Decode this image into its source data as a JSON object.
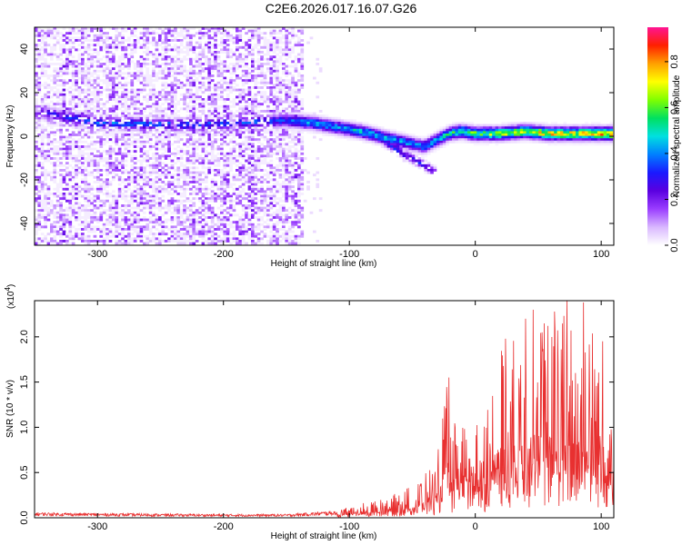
{
  "title": "C2E6.2026.017.16.07.G26",
  "chart_data": [
    {
      "type": "heatmap",
      "xlabel": "Height of straight line (km)",
      "ylabel": "Frequency (Hz)",
      "xlim": [
        -350,
        110
      ],
      "ylim": [
        -50,
        50
      ],
      "xticks": [
        -300,
        -200,
        -100,
        0,
        100
      ],
      "yticks": [
        -40,
        -20,
        0,
        20,
        40
      ],
      "xtick_labels": [
        "-300",
        "-200",
        "-100",
        "0",
        "100"
      ],
      "ytick_labels": [
        "-40",
        "-20",
        "0",
        "20",
        "40"
      ],
      "colorbar": {
        "label": "Normalized spectral amplitude",
        "range": [
          0,
          0.95
        ],
        "ticks": [
          0.0,
          0.2,
          0.4,
          0.6,
          0.8
        ],
        "tick_labels": [
          "0.0",
          "0.2",
          "0.4",
          "0.6",
          "0.8"
        ],
        "colors": [
          "#ffffff",
          "#d9b8ff",
          "#9a3dff",
          "#5a00e0",
          "#1a1aff",
          "#0080ff",
          "#00e0e0",
          "#00e060",
          "#80ff00",
          "#ffff00",
          "#ffa000",
          "#ff2000",
          "#ff1493"
        ]
      },
      "noise_region_end_km": -135,
      "signal_track": {
        "x": [
          -345,
          -300,
          -230,
          -150,
          -130,
          -110,
          -90,
          -70,
          -55,
          -40,
          -30,
          -20,
          -10,
          0,
          20,
          40,
          60,
          80,
          100,
          110
        ],
        "freq": [
          11,
          6,
          5,
          7,
          6,
          4,
          2,
          -1,
          -3,
          -5,
          -2,
          1,
          2,
          1,
          1,
          2,
          1,
          1,
          1,
          1
        ],
        "peak_amplitude": [
          0.3,
          0.45,
          0.4,
          0.4,
          0.5,
          0.5,
          0.55,
          0.5,
          0.5,
          0.45,
          0.55,
          0.6,
          0.65,
          0.7,
          0.75,
          0.8,
          0.85,
          0.85,
          0.9,
          0.9
        ]
      },
      "branches": [
        {
          "from": [
            -80,
            0
          ],
          "to": [
            -30,
            -17
          ]
        },
        {
          "from": [
            -65,
            -2
          ],
          "to": [
            -55,
            -10
          ]
        }
      ]
    },
    {
      "type": "line",
      "xlabel": "Height of straight line (km)",
      "ylabel": "SNR (10 * v/v)",
      "yscale_label": "(x10",
      "yscale_exponent": "4",
      "yscale_suffix": ")",
      "xlim": [
        -350,
        110
      ],
      "ylim": [
        0,
        2.4
      ],
      "xticks": [
        -300,
        -200,
        -100,
        0,
        100
      ],
      "yticks": [
        0.0,
        0.5,
        1.0,
        1.5,
        2.0
      ],
      "xtick_labels": [
        "-300",
        "-200",
        "-100",
        "0",
        "100"
      ],
      "ytick_labels": [
        "0.0",
        "0.5",
        "1.0",
        "1.5",
        "2.0"
      ],
      "series": [
        {
          "name": "SNR",
          "color": "#e83030",
          "envelope": {
            "x": [
              -350,
              -300,
              -200,
              -150,
              -110,
              -100,
              -80,
              -60,
              -45,
              -30,
              -22,
              -20,
              -10,
              0,
              10,
              20,
              30,
              40,
              50,
              60,
              70,
              80,
              90,
              100,
              110
            ],
            "max": [
              0.06,
              0.05,
              0.04,
              0.04,
              0.08,
              0.12,
              0.2,
              0.28,
              0.42,
              0.7,
              1.55,
              1.0,
              1.2,
              1.0,
              1.3,
              1.95,
              2.0,
              2.2,
              2.3,
              2.3,
              2.3,
              2.4,
              2.3,
              1.95,
              1.45
            ]
          },
          "spikes": [
            {
              "x": -21,
              "y": 1.55
            },
            {
              "x": 24,
              "y": 1.98
            },
            {
              "x": 40,
              "y": 2.2
            },
            {
              "x": 46,
              "y": 2.3
            },
            {
              "x": 53,
              "y": 2.05
            },
            {
              "x": 63,
              "y": 2.28
            },
            {
              "x": 73,
              "y": 2.4
            },
            {
              "x": 86,
              "y": 2.38
            },
            {
              "x": 101,
              "y": 1.95
            }
          ]
        }
      ]
    }
  ]
}
